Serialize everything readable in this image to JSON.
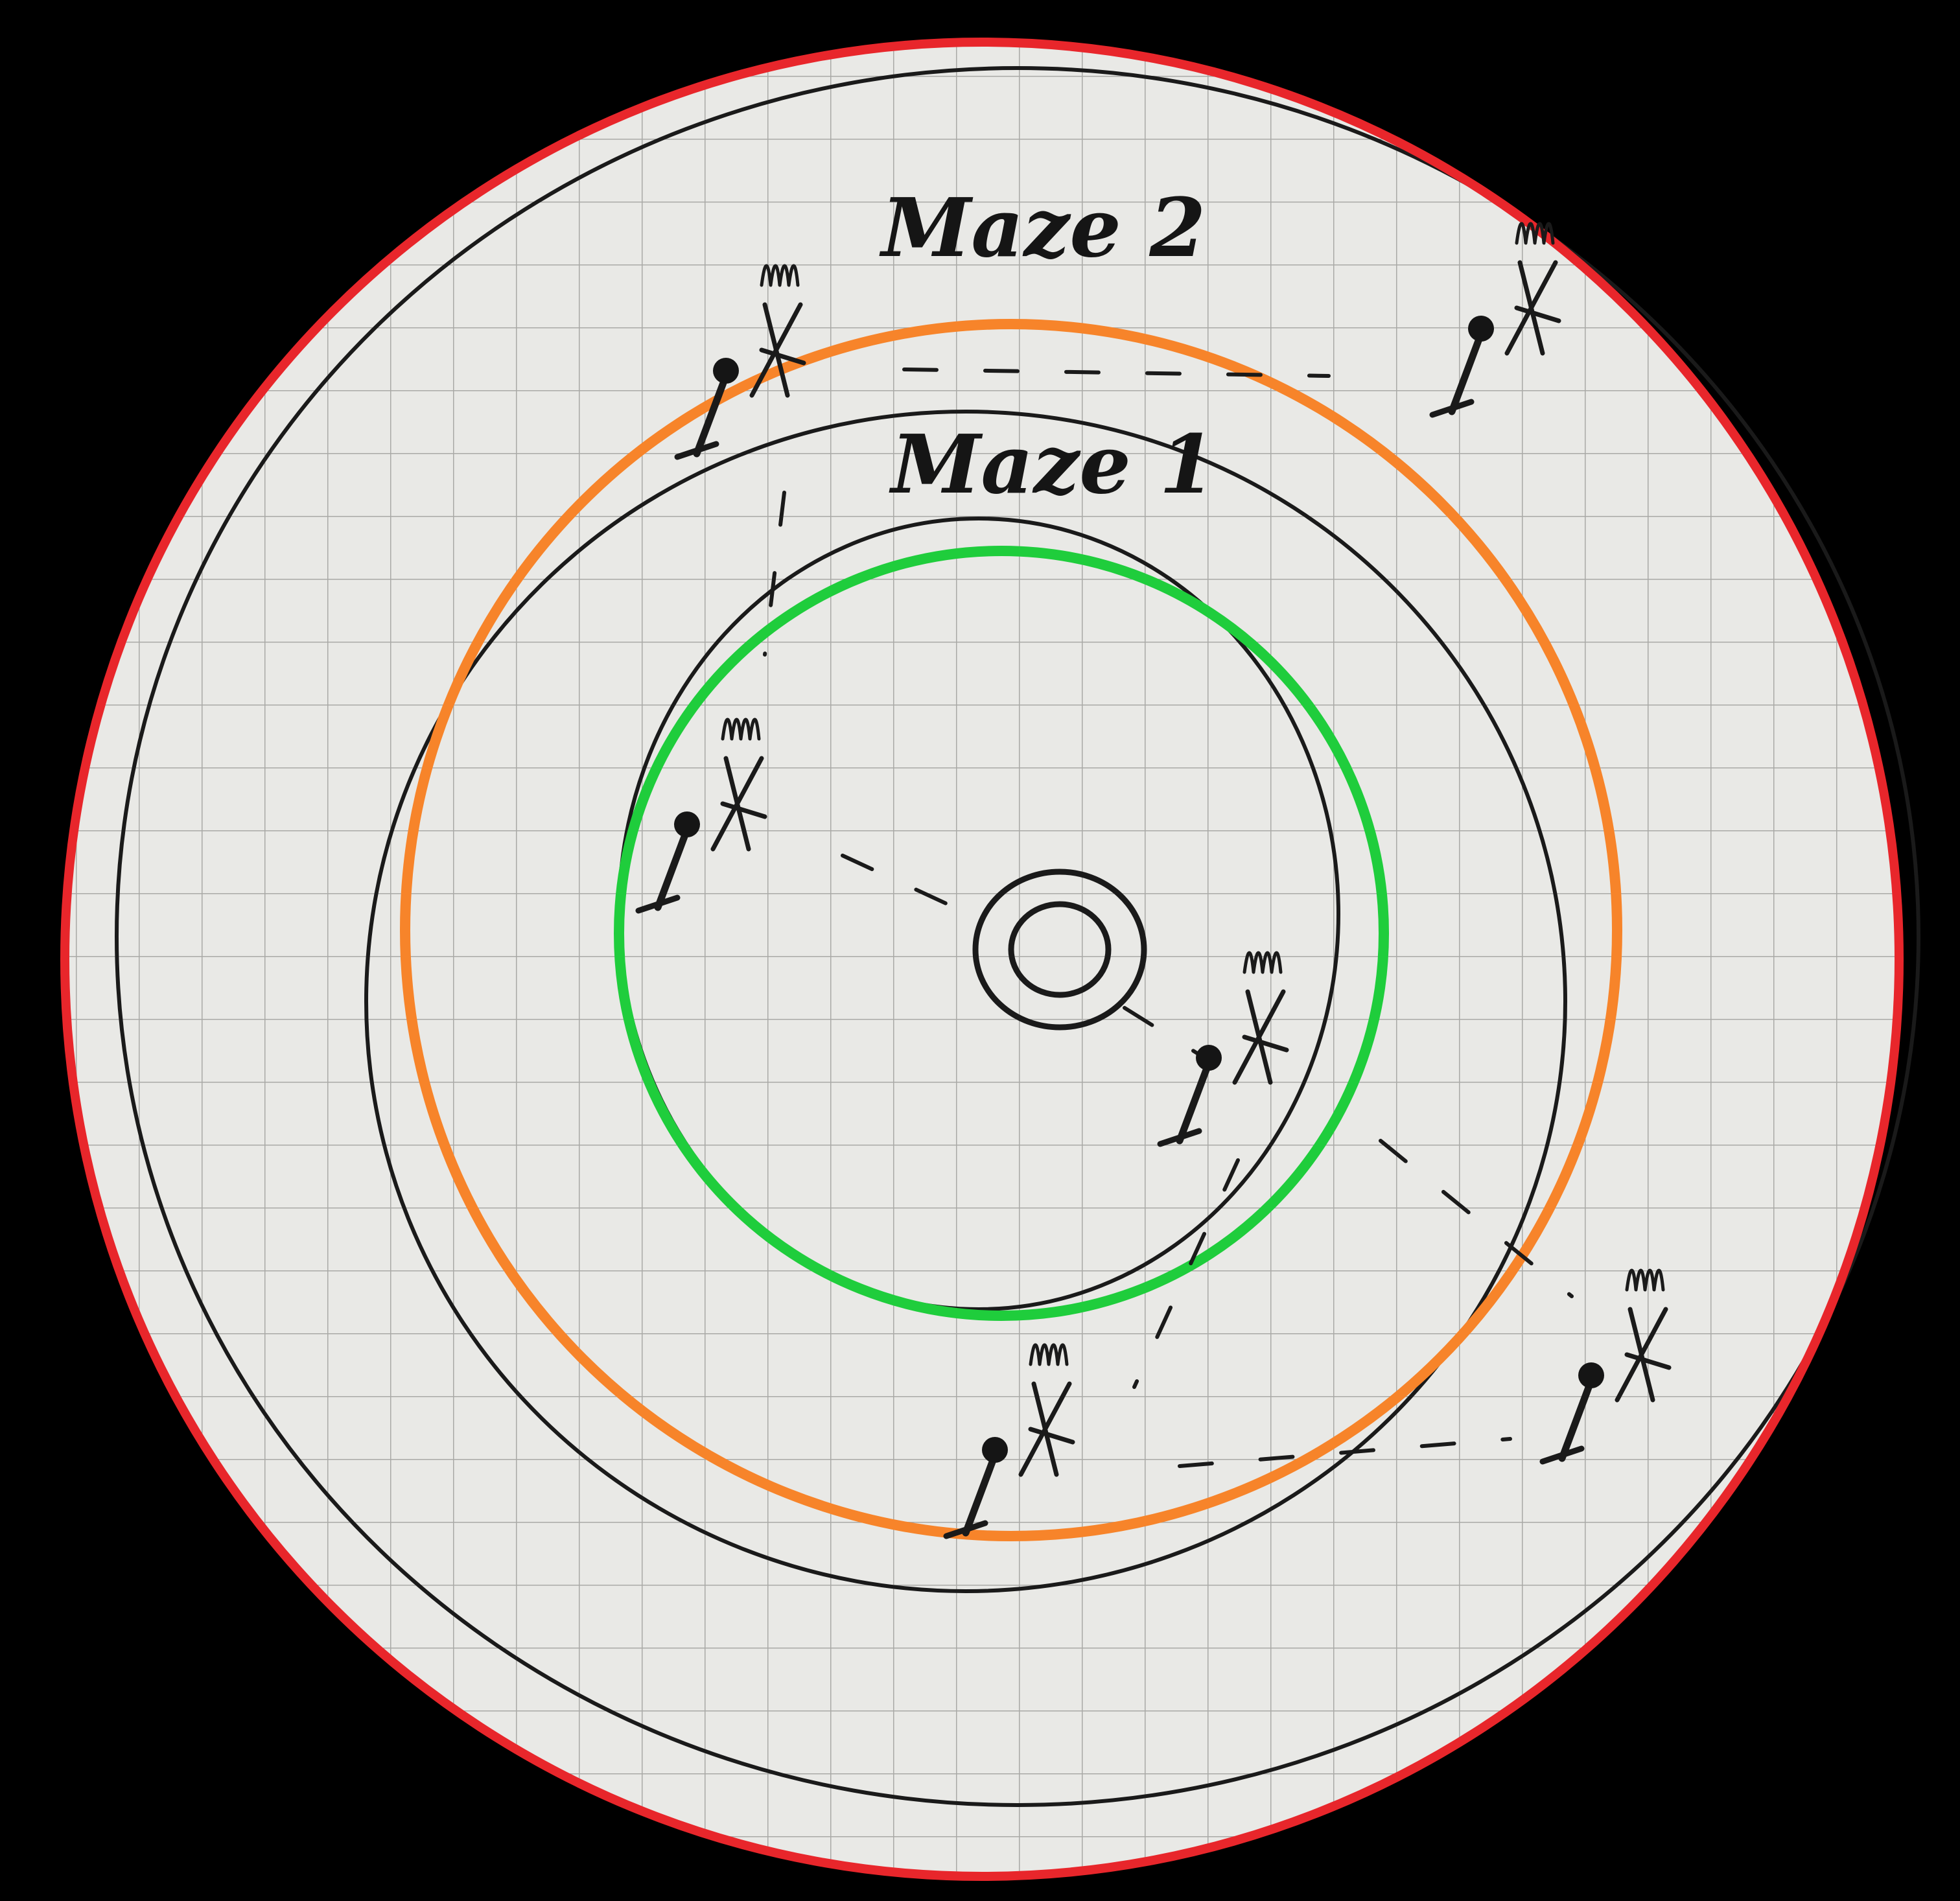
{
  "labels": {
    "maze_outer": "Maze 2",
    "maze_inner": "Maze 1"
  },
  "colors": {
    "background": "#000000",
    "paper": "#e9e9e6",
    "grid": "#a9a9a6",
    "ink": "#1a1a1a",
    "ring_red": "#e8262b",
    "ring_orange": "#f7842a",
    "ring_green": "#1fcd3c"
  },
  "icons": [
    "torch-icon",
    "target-icon"
  ]
}
